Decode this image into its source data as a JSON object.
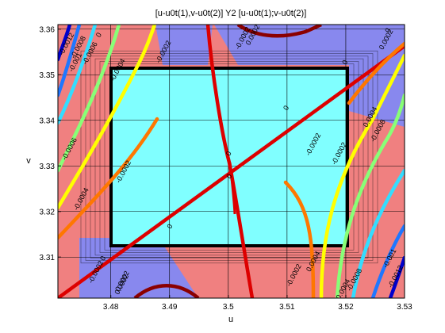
{
  "title": "[u-u0t(1),v-u0t(2)] Y2 [u-u0t(1);v-u0t(2)]",
  "chart_data": {
    "type": "contour",
    "title": "[u-u0t(1),v-u0t(2)] Y2 [u-u0t(1);v-u0t(2)]",
    "xlabel": "u",
    "ylabel": "v",
    "xlim": [
      3.471,
      3.53
    ],
    "ylim": [
      3.301,
      3.361
    ],
    "xticks": [
      "3.48",
      "3.49",
      "3.5",
      "3.51",
      "3.52",
      "3.53"
    ],
    "yticks": [
      "3.31",
      "3.32",
      "3.33",
      "3.34",
      "3.35",
      "3.36"
    ],
    "grid": true,
    "center": {
      "u": 3.5,
      "v": 3.33
    },
    "region_colors": {
      "positive": "#f08080",
      "negative": "#8888ee",
      "inner": "#80ffff",
      "inner_border": "#000000"
    },
    "levels": [
      {
        "value": "0",
        "color": "#dd0000"
      },
      {
        "value": "0.0002",
        "color": "#ff7700"
      },
      {
        "value": "-0.0002",
        "color": "#ff7700"
      },
      {
        "value": "0.0004",
        "color": "#ffff00"
      },
      {
        "value": "-0.0004",
        "color": "#ffff00"
      },
      {
        "value": "0.0006",
        "color": "#88ff77"
      },
      {
        "value": "-0.0006",
        "color": "#88ff77"
      },
      {
        "value": "0.0008",
        "color": "#33ddff"
      },
      {
        "value": "-0.0008",
        "color": "#33ddff"
      },
      {
        "value": "-0.001",
        "color": "#1f77ff"
      },
      {
        "value": "0.001",
        "color": "#1f77ff"
      },
      {
        "value": "-0.0012",
        "color": "#0000cc"
      },
      {
        "value": "0.0012",
        "color": "#0000cc"
      },
      {
        "value": "-0.0002",
        "color": "#8b0000"
      }
    ],
    "contour_labels": [
      {
        "text": "0",
        "u": 3.479,
        "v": 3.3095
      },
      {
        "text": "0",
        "u": 3.4904,
        "v": 3.3165
      },
      {
        "text": "0",
        "u": 3.5004,
        "v": 3.3325
      },
      {
        "text": "0",
        "u": 3.5005,
        "v": 3.3275
      },
      {
        "text": "0",
        "u": 3.5202,
        "v": 3.3525
      },
      {
        "text": "0",
        "u": 3.5102,
        "v": 3.3425
      },
      {
        "text": "0",
        "u": 3.4783,
        "v": 3.3585
      },
      {
        "text": "0",
        "u": 3.5275,
        "v": 3.3595
      },
      {
        "text": "-0.0002",
        "u": 3.4825,
        "v": 3.3285
      },
      {
        "text": "-0.0002",
        "u": 3.4778,
        "v": 3.3065
      },
      {
        "text": "-0.0002",
        "u": 3.5148,
        "v": 3.3345
      },
      {
        "text": "-0.0002",
        "u": 3.5115,
        "v": 3.3058
      },
      {
        "text": "0.0004",
        "u": 3.5148,
        "v": 3.3088
      },
      {
        "text": "-0.0002",
        "u": 3.5192,
        "v": 3.3325
      },
      {
        "text": "-0.0004",
        "u": 3.4815,
        "v": 3.3508
      },
      {
        "text": "-0.0004",
        "u": 3.4753,
        "v": 3.3225
      },
      {
        "text": "-0.0004",
        "u": 3.5198,
        "v": 3.3025
      },
      {
        "text": "0.0004",
        "u": 3.5245,
        "v": 3.3405
      },
      {
        "text": "-0.0006",
        "u": 3.4768,
        "v": 3.3545
      },
      {
        "text": "-0.0006",
        "u": 3.4733,
        "v": 3.3335
      },
      {
        "text": "-0.0008",
        "u": 3.4748,
        "v": 3.3558
      },
      {
        "text": "-0.0008",
        "u": 3.5218,
        "v": 3.3048
      },
      {
        "text": "-0.0008",
        "u": 3.5258,
        "v": 3.3375
      },
      {
        "text": "-0.001",
        "u": 3.4743,
        "v": 3.3525
      },
      {
        "text": "-0.001",
        "u": 3.5278,
        "v": 3.3095
      },
      {
        "text": "-0.0012",
        "u": 3.4728,
        "v": 3.3565
      },
      {
        "text": "-0.0012",
        "u": 3.5288,
        "v": 3.3055
      },
      {
        "text": "0.0002",
        "u": 3.4823,
        "v": 3.3045
      },
      {
        "text": "0.0002",
        "u": 3.5045,
        "v": 3.3585
      },
      {
        "text": "0.0002",
        "u": 3.5272,
        "v": 3.3575
      },
      {
        "text": "-0.0002",
        "u": 3.5028,
        "v": 3.3578
      },
      {
        "text": "-0.0002",
        "u": 3.4893,
        "v": 3.3548
      },
      {
        "text": "0.0002",
        "u": 3.4822,
        "v": 3.3038
      }
    ]
  }
}
